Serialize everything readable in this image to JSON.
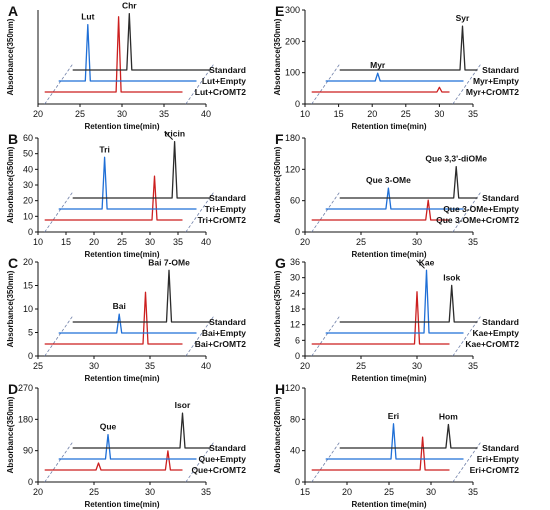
{
  "figure": {
    "colors": {
      "standard": "#2b2b2b",
      "empty": "#1f6fd6",
      "cromt2": "#cc1f1f",
      "guide": "#6f7fa8"
    },
    "xlabel": "Retention time(min)"
  },
  "chart_data": [
    {
      "type": "line",
      "panel": "A",
      "ylabel": "Absorbance(350nm)",
      "xlim": [
        20,
        40
      ],
      "xticks": [
        20,
        25,
        30,
        35,
        40
      ],
      "ylim": [
        0,
        50
      ],
      "yticks": [],
      "traces": [
        {
          "name": "Standard",
          "role": "standard",
          "peaks": [
            {
              "rt": 30.2,
              "h": 30
            }
          ]
        },
        {
          "name": "Lut+Empty",
          "role": "empty",
          "peaks": [
            {
              "rt": 25.6,
              "h": 30
            }
          ]
        },
        {
          "name": "Lut+CrOMT2",
          "role": "cromt2",
          "peaks": [
            {
              "rt": 29.6,
              "h": 40
            }
          ]
        }
      ],
      "peak_labels": [
        {
          "text": "Lut",
          "trace": 1,
          "rt": 25.6
        },
        {
          "text": "Chr",
          "trace": 0,
          "rt": 30.2
        }
      ]
    },
    {
      "type": "line",
      "panel": "B",
      "ylabel": "Absorbance(350nm)",
      "xlim": [
        10,
        40
      ],
      "xticks": [
        10,
        15,
        20,
        25,
        30,
        35,
        40
      ],
      "ylim": [
        0,
        60
      ],
      "yticks": [
        0,
        10,
        20,
        30,
        40,
        50,
        60
      ],
      "traces": [
        {
          "name": "Standard",
          "role": "standard",
          "peaks": [
            {
              "rt": 33.4,
              "h": 36
            }
          ]
        },
        {
          "name": "Tri+Empty",
          "role": "empty",
          "peaks": [
            {
              "rt": 21.4,
              "h": 33
            }
          ]
        },
        {
          "name": "Tri+CrOMT2",
          "role": "cromt2",
          "peaks": [
            {
              "rt": 30.8,
              "h": 28
            }
          ]
        }
      ],
      "peak_labels": [
        {
          "text": "Tri",
          "trace": 1,
          "rt": 21.4
        },
        {
          "text": "tricin",
          "trace": 0,
          "rt": 33.4,
          "arrow": true
        }
      ]
    },
    {
      "type": "line",
      "panel": "C",
      "ylabel": "Absorbance(350nm)",
      "xlim": [
        25,
        40
      ],
      "xticks": [
        25,
        30,
        35,
        40
      ],
      "ylim": [
        0,
        20
      ],
      "yticks": [
        0,
        5,
        10,
        15,
        20
      ],
      "traces": [
        {
          "name": "Standard",
          "role": "standard",
          "peaks": [
            {
              "rt": 36.2,
              "h": 11
            }
          ]
        },
        {
          "name": "Bai+Empty",
          "role": "empty",
          "peaks": [
            {
              "rt": 32.0,
              "h": 4
            }
          ]
        },
        {
          "name": "Bai+CrOMT2",
          "role": "cromt2",
          "peaks": [
            {
              "rt": 34.6,
              "h": 11
            }
          ]
        }
      ],
      "peak_labels": [
        {
          "text": "Bai",
          "trace": 1,
          "rt": 32.0
        },
        {
          "text": "Bai 7-OMe",
          "trace": 0,
          "rt": 36.2
        }
      ]
    },
    {
      "type": "line",
      "panel": "D",
      "ylabel": "Absorbance(350nm)",
      "xlim": [
        20,
        35
      ],
      "xticks": [
        20,
        25,
        30,
        35
      ],
      "ylim": [
        0,
        270
      ],
      "yticks": [
        0,
        90,
        180,
        270
      ],
      "traces": [
        {
          "name": "Standard",
          "role": "standard",
          "peaks": [
            {
              "rt": 32.4,
              "h": 100
            }
          ]
        },
        {
          "name": "Que+Empty",
          "role": "empty",
          "peaks": [
            {
              "rt": 26.0,
              "h": 70
            }
          ]
        },
        {
          "name": "Que+CrOMT2",
          "role": "cromt2",
          "peaks": [
            {
              "rt": 25.4,
              "h": 20
            },
            {
              "rt": 31.6,
              "h": 55
            }
          ]
        }
      ],
      "peak_labels": [
        {
          "text": "Que",
          "trace": 1,
          "rt": 26.0
        },
        {
          "text": "Isor",
          "trace": 0,
          "rt": 32.4
        }
      ]
    },
    {
      "type": "line",
      "panel": "E",
      "ylabel": "Absorbance(350nm)",
      "xlim": [
        10,
        35
      ],
      "xticks": [
        10,
        15,
        20,
        25,
        30,
        35
      ],
      "ylim": [
        0,
        300
      ],
      "yticks": [
        0,
        100,
        200,
        300
      ],
      "traces": [
        {
          "name": "Standard",
          "role": "standard",
          "peaks": [
            {
              "rt": 32.6,
              "h": 140
            }
          ]
        },
        {
          "name": "Myr+Empty",
          "role": "empty",
          "peaks": [
            {
              "rt": 20.4,
              "h": 25
            }
          ]
        },
        {
          "name": "Myr+CrOMT2",
          "role": "cromt2",
          "peaks": [
            {
              "rt": 30.0,
              "h": 15
            }
          ]
        }
      ],
      "peak_labels": [
        {
          "text": "Myr",
          "trace": 1,
          "rt": 20.4
        },
        {
          "text": "Syr",
          "trace": 0,
          "rt": 32.6
        }
      ]
    },
    {
      "type": "line",
      "panel": "F",
      "ylabel": "Absorbance(350nm)",
      "xlim": [
        20,
        35
      ],
      "xticks": [
        20,
        25,
        30,
        35
      ],
      "ylim": [
        0,
        180
      ],
      "yticks": [
        0,
        60,
        120,
        180
      ],
      "traces": [
        {
          "name": "Standard",
          "role": "standard",
          "peaks": [
            {
              "rt": 33.0,
              "h": 60
            }
          ]
        },
        {
          "name": "Que 3-OMe+Empty",
          "role": "empty",
          "peaks": [
            {
              "rt": 27.2,
              "h": 40
            }
          ]
        },
        {
          "name": "Que 3-OMe+CrOMT2",
          "role": "cromt2",
          "peaks": [
            {
              "rt": 31.0,
              "h": 38
            }
          ]
        }
      ],
      "peak_labels": [
        {
          "text": "Que 3-OMe",
          "trace": 1,
          "rt": 27.2
        },
        {
          "text": "Que 3,3'-diOMe",
          "trace": 0,
          "rt": 33.0
        }
      ]
    },
    {
      "type": "line",
      "panel": "G",
      "ylabel": "Absorbance(350nm)",
      "xlim": [
        20,
        35
      ],
      "xticks": [
        20,
        25,
        30,
        35
      ],
      "ylim": [
        0,
        36
      ],
      "yticks": [
        0,
        6,
        12,
        18,
        24,
        30,
        36
      ],
      "traces": [
        {
          "name": "Standard",
          "role": "standard",
          "peaks": [
            {
              "rt": 32.6,
              "h": 14
            }
          ]
        },
        {
          "name": "Kae+Empty",
          "role": "empty",
          "peaks": [
            {
              "rt": 30.6,
              "h": 24
            }
          ]
        },
        {
          "name": "Kae+CrOMT2",
          "role": "cromt2",
          "peaks": [
            {
              "rt": 30.0,
              "h": 20
            }
          ]
        }
      ],
      "peak_labels": [
        {
          "text": "Kae",
          "trace": 1,
          "rt": 30.6,
          "arrow": true
        },
        {
          "text": "Isok",
          "trace": 0,
          "rt": 32.6
        }
      ]
    },
    {
      "type": "line",
      "panel": "H",
      "ylabel": "Absorbance(280nm)",
      "xlim": [
        15,
        35
      ],
      "xticks": [
        15,
        20,
        25,
        30,
        35
      ],
      "ylim": [
        0,
        120
      ],
      "yticks": [
        0,
        40,
        80,
        120
      ],
      "traces": [
        {
          "name": "Standard",
          "role": "standard",
          "peaks": [
            {
              "rt": 31.4,
              "h": 30
            }
          ]
        },
        {
          "name": "Eri+Empty",
          "role": "empty",
          "peaks": [
            {
              "rt": 25.2,
              "h": 45
            }
          ]
        },
        {
          "name": "Eri+CrOMT2",
          "role": "cromt2",
          "peaks": [
            {
              "rt": 29.0,
              "h": 42
            }
          ]
        }
      ],
      "peak_labels": [
        {
          "text": "Eri",
          "trace": 1,
          "rt": 25.2
        },
        {
          "text": "Hom",
          "trace": 0,
          "rt": 31.4
        }
      ]
    }
  ]
}
